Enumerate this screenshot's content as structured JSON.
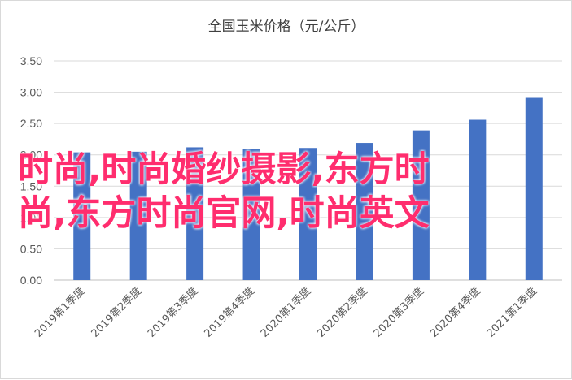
{
  "chart_data": {
    "type": "bar",
    "title": "全国玉米价格（元/公斤）",
    "categories": [
      "2019第1季度",
      "2019第2季度",
      "2019第3季度",
      "2019第4季度",
      "2020第1季度",
      "2020第2季度",
      "2020第3季度",
      "2020第4季度",
      "2021第1季度"
    ],
    "values": [
      2.04,
      2.05,
      2.12,
      2.1,
      2.11,
      2.19,
      2.39,
      2.56,
      2.91
    ],
    "ylim": [
      0,
      3.5
    ],
    "yticks": [
      "0.00",
      "0.50",
      "1.00",
      "1.50",
      "2.00",
      "2.50",
      "3.00",
      "3.50"
    ],
    "xlabel": "",
    "ylabel": "",
    "grid": true,
    "bar_color": "#4472c4"
  },
  "watermark": {
    "line1": "时尚,时尚婚纱摄影,东方时",
    "line2": "尚,东方时尚官网,时尚英文",
    "color": "#ff2d6e"
  }
}
